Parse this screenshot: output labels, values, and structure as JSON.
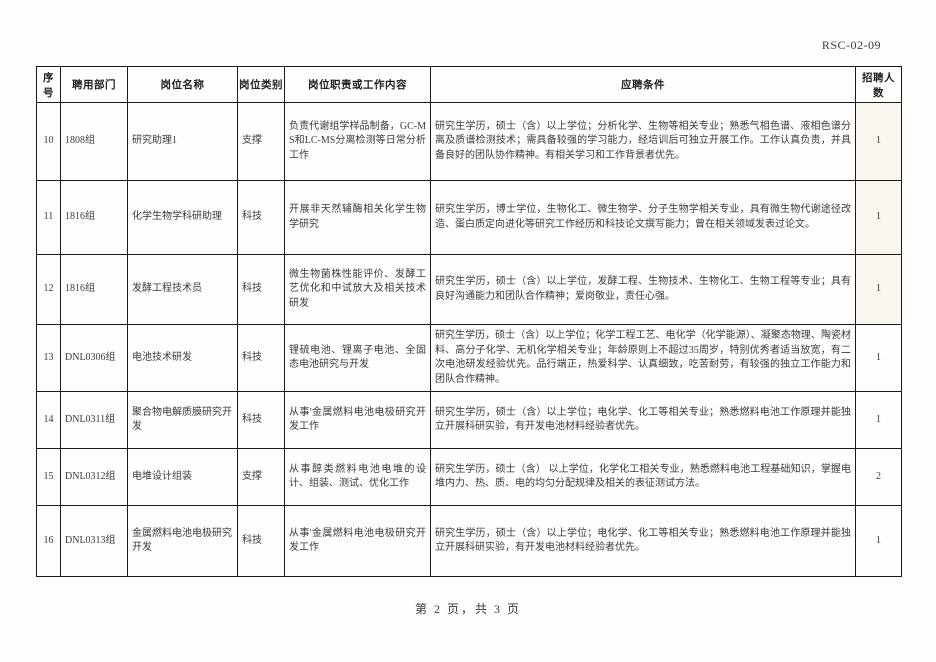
{
  "doc": {
    "code": "RSC-02-09",
    "footer": "第 2 页，共 3 页"
  },
  "table": {
    "headers": [
      "序号",
      "聘用部门",
      "岗位名称",
      "岗位类别",
      "岗位职责或工作内容",
      "应聘条件",
      "招聘人数"
    ],
    "rows": [
      {
        "no": "10",
        "dept": "1808组",
        "title": "研究助理1",
        "category": "支撑",
        "duties": "负责代谢组学样品制备，GC-MS和LC-MS分离检测等日常分析工作",
        "requirements": "研究生学历，硕士（含）以上学位；分析化学、生物等相关专业；熟悉气相色谱、液相色谱分离及质谱检测技术；需具备较强的学习能力，经培训后可独立开展工作。工作认真负责，并具备良好的团队协作精神。有相关学习和工作背景者优先。",
        "count": "1"
      },
      {
        "no": "11",
        "dept": "1816组",
        "title": "化学生物学科研助理",
        "category": "科技",
        "duties": "开展非天然辅酶相关化学生物学研究",
        "requirements": "研究生学历，博士学位，生物化工、微生物学、分子生物学相关专业，具有微生物代谢途径改造、蛋白质定向进化等研究工作经历和科技论文撰写能力；曾在相关领域发表过论文。",
        "count": "1"
      },
      {
        "no": "12",
        "dept": "1816组",
        "title": "发酵工程技术员",
        "category": "科技",
        "duties": "微生物菌株性能评价、发酵工艺优化和中试放大及相关技术研发",
        "requirements": "研究生学历，硕士（含）以上学位，发酵工程、生物技术、生物化工、生物工程等专业；具有良好沟通能力和团队合作精神；爱岗敬业，责任心强。",
        "count": "1"
      },
      {
        "no": "13",
        "dept": "DNL0306组",
        "title": "电池技术研发",
        "category": "科技",
        "duties": "锂硫电池、锂离子电池、全固态电池研究与开发",
        "requirements": "研究生学历，硕士（含）以上学位；化学工程工艺、电化学（化学能源）、凝聚态物理、陶瓷材料、高分子化学、无机化学相关专业；年龄原则上不超过35周岁，特别优秀者适当放宽，有二次电池研发经验优先。品行端正，热爱科学、认真细致，吃苦耐劳，有较强的独立工作能力和团队合作精神。",
        "count": "1"
      },
      {
        "no": "14",
        "dept": "DNL0311组",
        "title": "聚合物电解质膜研究开发",
        "category": "科技",
        "duties": "从事'金属燃料电池电极研究开发工作",
        "requirements": "研究生学历，硕士（含）以上学位；电化学、化工等相关专业；熟悉燃料电池工作原理并能独立开展科研实验，有开发电池材料经验者优先。",
        "count": "1"
      },
      {
        "no": "15",
        "dept": "DNL0312组",
        "title": "电堆设计组装",
        "category": "支撑",
        "duties": "从事醇类燃料电池电堆的设计、组装、测试、优化工作",
        "requirements": "研究生学历，硕士（含） 以上学位，化学化工相关专业，熟悉燃料电池工程基础知识，掌握电堆内力、热、质、电的均匀分配规律及相关的表征测试方法。",
        "count": "2"
      },
      {
        "no": "16",
        "dept": "DNL0313组",
        "title": "金属燃料电池电极研究开发",
        "category": "科技",
        "duties": "从事'金属燃料电池电极研究开发工作",
        "requirements": "研究生学历，硕士（含）以上学位；电化学、化工等相关专业；熟悉燃料电池工作原理并能独立开展科研实验，有开发电池材料经验者优先。",
        "count": "1"
      }
    ]
  }
}
